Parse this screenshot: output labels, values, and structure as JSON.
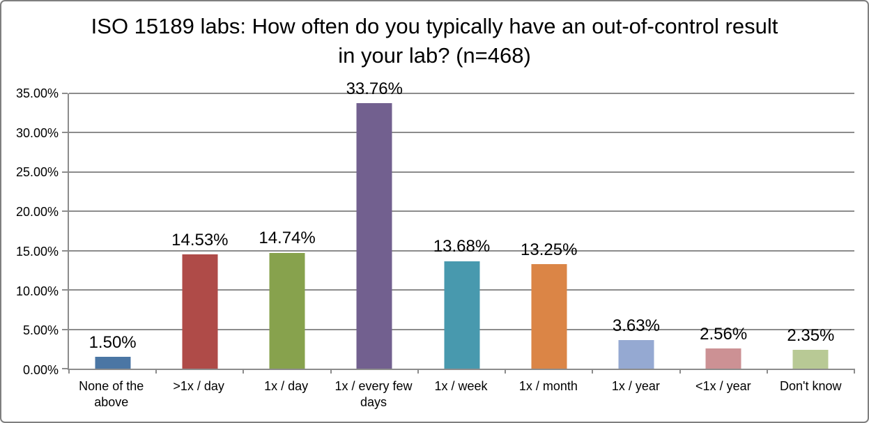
{
  "chart_data": {
    "type": "bar",
    "title": "ISO 15189 labs: How often do you typically have an out-of-control result in your lab? (n=468)",
    "categories": [
      "None of the above",
      ">1x / day",
      "1x / day",
      "1x / every few days",
      "1x / week",
      "1x / month",
      "1x / year",
      "<1x / year",
      "Don't know"
    ],
    "values": [
      1.5,
      14.53,
      14.74,
      33.76,
      13.68,
      13.25,
      3.63,
      2.56,
      2.35
    ],
    "data_labels": [
      "1.50%",
      "14.53%",
      "14.74%",
      "33.76%",
      "13.68%",
      "13.25%",
      "3.63%",
      "2.56%",
      "2.35%"
    ],
    "bar_colors": [
      "#4B76A4",
      "#AF4B48",
      "#87A24D",
      "#72608F",
      "#4899AE",
      "#DB8546",
      "#95A9D2",
      "#CC9194",
      "#B8C995"
    ],
    "xlabel": "",
    "ylabel": "",
    "ylim": [
      0,
      35
    ],
    "ytick_step": 5,
    "ytick_labels": [
      "0.00%",
      "5.00%",
      "10.00%",
      "15.00%",
      "20.00%",
      "25.00%",
      "30.00%",
      "35.00%"
    ],
    "grid": true,
    "legend": false
  },
  "colors": {
    "background": "#FFFFFF",
    "border": "#7F7F7F",
    "gridline": "#8C8C8C",
    "axis": "#8C8C8C",
    "text": "#000000"
  }
}
